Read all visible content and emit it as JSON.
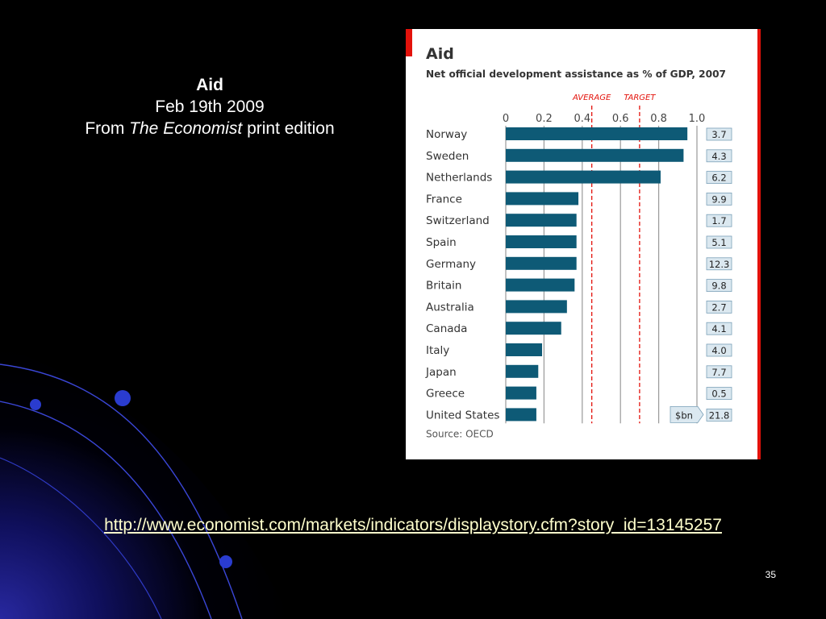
{
  "slide": {
    "title": "Aid",
    "date": "Feb 19th 2009",
    "from_prefix": "From ",
    "publication": "The Economist",
    "from_suffix": " print edition",
    "url": "http://www.economist.com/markets/indicators/displaystory.cfm?story_id=13145257",
    "page_number": "35"
  },
  "colors": {
    "bar": "#0e5a76",
    "accent_red": "#e3120b",
    "value_box": "#dbe8f0",
    "url_text": "#ffffcc"
  },
  "chart_data": {
    "type": "bar",
    "orientation": "horizontal",
    "title": "Aid",
    "subtitle": "Net official development assistance as % of GDP, 2007",
    "xlim": [
      0,
      1.0
    ],
    "xticks": [
      "0",
      "0.2",
      "0.4",
      "0.6",
      "0.8",
      "1.0"
    ],
    "tick_values": [
      0,
      0.2,
      0.4,
      0.6,
      0.8,
      1.0
    ],
    "grid": true,
    "reference_lines": [
      {
        "label": "AVERAGE",
        "value": 0.45
      },
      {
        "label": "TARGET",
        "value": 0.7
      }
    ],
    "categories": [
      "Norway",
      "Sweden",
      "Netherlands",
      "France",
      "Switzerland",
      "Spain",
      "Germany",
      "Britain",
      "Australia",
      "Canada",
      "Italy",
      "Japan",
      "Greece",
      "United States"
    ],
    "values": [
      0.95,
      0.93,
      0.81,
      0.38,
      0.37,
      0.37,
      0.37,
      0.36,
      0.32,
      0.29,
      0.19,
      0.17,
      0.16,
      0.16
    ],
    "side_values": [
      "3.7",
      "4.3",
      "6.2",
      "9.9",
      "1.7",
      "5.1",
      "12.3",
      "9.8",
      "2.7",
      "4.1",
      "4.0",
      "7.7",
      "0.5",
      "21.8"
    ],
    "side_unit_label": "$bn",
    "source": "Source: OECD"
  }
}
